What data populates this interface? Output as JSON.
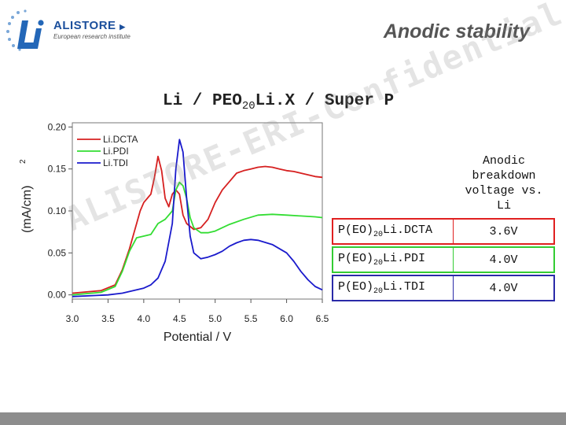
{
  "logo": {
    "name": "ALISTORE",
    "subtitle": "European research institute"
  },
  "slide_title": "Anodic stability",
  "subtitle": {
    "part1": "Li / PEO",
    "sub": "20",
    "part2": "Li.X / Super P"
  },
  "watermark": "ALISTORE-ERI-Confidential",
  "y_axis_fragment": "(mA/cm)",
  "y_axis_superscript": "2",
  "table": {
    "header": "Anodic breakdown voltage vs. Li",
    "rows": [
      {
        "name_pre": "P(EO)",
        "name_sub": "20",
        "name_post": "Li.DCTA",
        "value": "3.6V"
      },
      {
        "name_pre": "P(EO)",
        "name_sub": "20",
        "name_post": "Li.PDI",
        "value": "4.0V"
      },
      {
        "name_pre": "P(EO)",
        "name_sub": "20",
        "name_post": "Li.TDI",
        "value": "4.0V"
      }
    ]
  },
  "colors": {
    "dcta": "#d62020",
    "pdi": "#33dd33",
    "tdi": "#1a1acc",
    "bottom_bar": "#8d8d8d"
  },
  "chart_data": {
    "type": "line",
    "xlabel": "Potential / V",
    "xlim": [
      3.0,
      6.5
    ],
    "ylim": [
      -0.005,
      0.205
    ],
    "x_ticks": [
      "3.0",
      "3.5",
      "4.0",
      "4.5",
      "5.0",
      "5.5",
      "6.0",
      "6.5"
    ],
    "y_ticks": [
      "0.00",
      "0.05",
      "0.10",
      "0.15",
      "0.20"
    ],
    "y_tick_values": [
      0.0,
      0.05,
      0.1,
      0.15,
      0.2
    ],
    "legend_position": "top-left",
    "series": [
      {
        "name": "Li.DCTA",
        "color": "#d62020",
        "x": [
          3.0,
          3.4,
          3.6,
          3.7,
          3.8,
          3.9,
          3.95,
          4.0,
          4.05,
          4.1,
          4.15,
          4.2,
          4.25,
          4.3,
          4.35,
          4.4,
          4.45,
          4.5,
          4.55,
          4.6,
          4.7,
          4.8,
          4.9,
          5.0,
          5.1,
          5.2,
          5.3,
          5.4,
          5.5,
          5.6,
          5.7,
          5.8,
          5.9,
          6.0,
          6.1,
          6.2,
          6.3,
          6.4,
          6.5
        ],
        "y": [
          0.002,
          0.005,
          0.012,
          0.03,
          0.055,
          0.085,
          0.1,
          0.11,
          0.115,
          0.12,
          0.14,
          0.165,
          0.148,
          0.115,
          0.105,
          0.12,
          0.125,
          0.12,
          0.095,
          0.085,
          0.078,
          0.08,
          0.09,
          0.11,
          0.125,
          0.135,
          0.145,
          0.148,
          0.15,
          0.152,
          0.153,
          0.152,
          0.15,
          0.148,
          0.147,
          0.145,
          0.143,
          0.141,
          0.14
        ]
      },
      {
        "name": "Li.PDI",
        "color": "#33dd33",
        "x": [
          3.0,
          3.4,
          3.6,
          3.7,
          3.8,
          3.9,
          4.0,
          4.1,
          4.2,
          4.3,
          4.4,
          4.45,
          4.5,
          4.55,
          4.6,
          4.65,
          4.7,
          4.8,
          4.9,
          5.0,
          5.1,
          5.2,
          5.4,
          5.6,
          5.8,
          6.0,
          6.2,
          6.4,
          6.5
        ],
        "y": [
          0.0,
          0.003,
          0.01,
          0.028,
          0.052,
          0.068,
          0.07,
          0.072,
          0.085,
          0.09,
          0.1,
          0.125,
          0.134,
          0.13,
          0.115,
          0.092,
          0.08,
          0.074,
          0.074,
          0.076,
          0.08,
          0.084,
          0.09,
          0.095,
          0.096,
          0.095,
          0.094,
          0.093,
          0.092
        ]
      },
      {
        "name": "Li.TDI",
        "color": "#1a1acc",
        "x": [
          3.0,
          3.5,
          3.7,
          3.8,
          3.9,
          4.0,
          4.1,
          4.2,
          4.3,
          4.4,
          4.45,
          4.5,
          4.55,
          4.6,
          4.65,
          4.7,
          4.8,
          4.9,
          5.0,
          5.1,
          5.2,
          5.3,
          5.4,
          5.5,
          5.6,
          5.8,
          6.0,
          6.1,
          6.2,
          6.3,
          6.4,
          6.5
        ],
        "y": [
          -0.002,
          0.0,
          0.002,
          0.004,
          0.006,
          0.008,
          0.012,
          0.02,
          0.04,
          0.085,
          0.15,
          0.185,
          0.17,
          0.115,
          0.07,
          0.05,
          0.043,
          0.045,
          0.048,
          0.052,
          0.058,
          0.062,
          0.065,
          0.066,
          0.065,
          0.06,
          0.05,
          0.04,
          0.028,
          0.018,
          0.01,
          0.006
        ]
      }
    ]
  }
}
